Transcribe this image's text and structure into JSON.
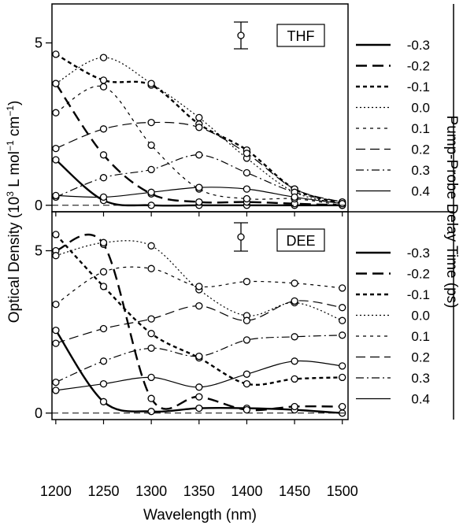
{
  "chart_data": {
    "type": "line",
    "x_label": "Wavelength (nm)",
    "y_label": "Optical Density (10³ L mol⁻¹ cm⁻¹)",
    "y_label_parts": {
      "main": "Optical Density (10",
      "exp1": "3",
      "mid": " L mol",
      "exp2": "−1",
      "mid2": " cm",
      "exp3": "−1",
      "end": ")"
    },
    "legend_title": "Pump-Probe Delay Time (ps)",
    "x_ticks": [
      1200,
      1250,
      1300,
      1350,
      1400,
      1450,
      1500
    ],
    "x_range": [
      1196,
      1506
    ],
    "panels": [
      {
        "name": "THF",
        "y_range": [
          -0.2,
          6.2
        ],
        "y_ticks": [
          0,
          5
        ],
        "x": [
          1200,
          1250,
          1300,
          1350,
          1400,
          1450,
          1500
        ],
        "series": [
          {
            "name": "-0.3",
            "values": [
              1.4,
              0.15,
              0.0,
              0.0,
              0.0,
              0.0,
              0.0
            ]
          },
          {
            "name": "-0.2",
            "values": [
              3.75,
              1.55,
              0.35,
              0.1,
              0.1,
              0.05,
              0.0
            ]
          },
          {
            "name": "-0.1",
            "values": [
              4.65,
              3.85,
              3.7,
              2.5,
              1.7,
              0.5,
              0.05
            ]
          },
          {
            "name": "0.0",
            "values": [
              3.75,
              4.55,
              3.75,
              2.7,
              1.45,
              0.4,
              0.05
            ]
          },
          {
            "name": "0.1",
            "values": [
              2.85,
              3.65,
              1.85,
              0.5,
              0.2,
              0.2,
              0.0
            ]
          },
          {
            "name": "0.2",
            "values": [
              1.75,
              2.35,
              2.55,
              2.4,
              1.6,
              0.5,
              0.1
            ]
          },
          {
            "name": "0.3",
            "values": [
              0.25,
              0.85,
              1.1,
              1.55,
              1.0,
              0.4,
              0.1
            ]
          },
          {
            "name": "0.4",
            "values": [
              0.3,
              0.25,
              0.4,
              0.55,
              0.5,
              0.25,
              0.05
            ]
          }
        ]
      },
      {
        "name": "DEE",
        "y_range": [
          -0.2,
          6.2
        ],
        "y_ticks": [
          0,
          5
        ],
        "x": [
          1200,
          1250,
          1300,
          1350,
          1400,
          1450,
          1500
        ],
        "series": [
          {
            "name": "-0.3",
            "values": [
              2.55,
              0.35,
              0.05,
              0.15,
              0.15,
              0.1,
              0.0
            ]
          },
          {
            "name": "-0.2",
            "values": [
              5.0,
              5.2,
              0.45,
              0.5,
              0.1,
              0.2,
              0.2
            ]
          },
          {
            "name": "-0.1",
            "values": [
              5.5,
              3.9,
              2.45,
              1.7,
              0.9,
              1.05,
              1.1
            ]
          },
          {
            "name": "0.0",
            "values": [
              4.85,
              5.25,
              5.15,
              3.8,
              3.0,
              3.4,
              2.85
            ]
          },
          {
            "name": "0.1",
            "values": [
              3.35,
              4.35,
              4.45,
              3.9,
              4.05,
              4.0,
              3.85
            ]
          },
          {
            "name": "0.2",
            "values": [
              2.15,
              2.6,
              2.9,
              3.3,
              2.85,
              3.45,
              3.25
            ]
          },
          {
            "name": "0.3",
            "values": [
              0.95,
              1.6,
              2.0,
              1.75,
              2.25,
              2.35,
              2.4
            ]
          },
          {
            "name": "0.4",
            "values": [
              0.7,
              0.9,
              1.1,
              0.8,
              1.2,
              1.6,
              1.45
            ]
          }
        ]
      }
    ]
  }
}
